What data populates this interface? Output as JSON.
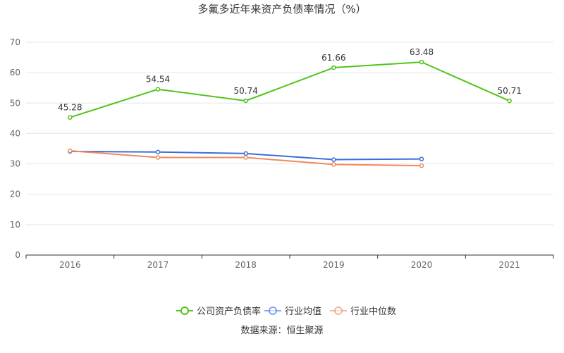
{
  "chart_data": {
    "type": "line",
    "title": "多氟多近年来资产负债率情况（%）",
    "categories": [
      "2016",
      "2017",
      "2018",
      "2019",
      "2020",
      "2021"
    ],
    "ylim": [
      0,
      70
    ],
    "yticks": [
      0,
      10,
      20,
      30,
      40,
      50,
      60,
      70
    ],
    "grid": true,
    "legend_position": "bottom",
    "series": [
      {
        "name": "公司资产负债率",
        "color": "#52c41a",
        "values": [
          45.28,
          54.54,
          50.74,
          61.66,
          63.48,
          50.71
        ],
        "labels": [
          "45.28",
          "54.54",
          "50.74",
          "61.66",
          "63.48",
          "50.71"
        ]
      },
      {
        "name": "行业均值",
        "color": "#3a6fd8",
        "values": [
          34.1,
          33.9,
          33.4,
          31.4,
          31.6,
          null
        ]
      },
      {
        "name": "行业中位数",
        "color": "#f08a5d",
        "values": [
          34.3,
          32.1,
          32.1,
          29.8,
          29.4,
          null
        ]
      }
    ],
    "source": "数据来源：恒生聚源"
  }
}
